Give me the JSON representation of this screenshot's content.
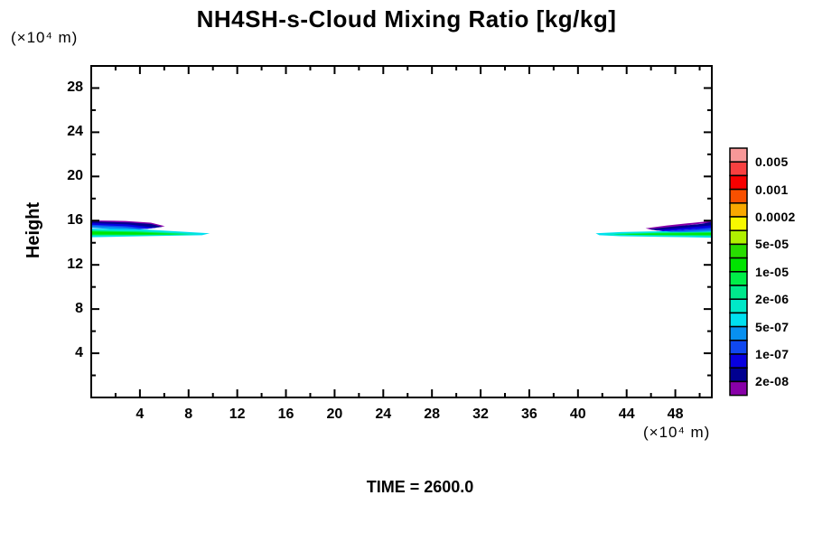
{
  "title": "NH4SH-s-Cloud Mixing Ratio [kg/kg]",
  "ylabel": "Height",
  "y_unit": "(×10⁴  m)",
  "x_unit": "(×10⁴  m)",
  "time_label": "TIME = 2600.0",
  "chart_data": {
    "type": "heatmap",
    "subtype": "filled-contour-cloud-cross-section",
    "title": "NH4SH-s-Cloud Mixing Ratio [kg/kg]",
    "xlabel_unit": "(×10⁴ m)",
    "ylabel": "Height",
    "ylabel_unit": "(×10⁴ m)",
    "time": 2600.0,
    "x_range": [
      0,
      51
    ],
    "y_range": [
      0,
      30
    ],
    "grid": false,
    "x_ticks_major": [
      4,
      8,
      12,
      16,
      20,
      24,
      28,
      32,
      36,
      40,
      44,
      48
    ],
    "x_ticks_minor": [
      2,
      6,
      10,
      14,
      18,
      22,
      26,
      30,
      34,
      38,
      42,
      46,
      50
    ],
    "y_ticks_major": [
      4,
      8,
      12,
      16,
      20,
      24,
      28
    ],
    "y_ticks_minor": [
      2,
      6,
      10,
      14,
      18,
      22,
      26,
      30
    ],
    "colorbar": {
      "position": "right",
      "colors": [
        "#F89898",
        "#F84040",
        "#F80000",
        "#F85000",
        "#F8A800",
        "#F8F800",
        "#B0F000",
        "#28DC00",
        "#00E400",
        "#00EE48",
        "#00E88C",
        "#00E8C8",
        "#00E0F0",
        "#0890F0",
        "#1048F0",
        "#0800E0",
        "#000090",
        "#8800A8"
      ],
      "labels": [
        "0.005",
        "0.001",
        "0.0002",
        "5e-05",
        "1e-05",
        "2e-06",
        "5e-07",
        "1e-07",
        "2e-08"
      ],
      "label_cell_boundaries": [
        1,
        3,
        5,
        7,
        9,
        11,
        13,
        15,
        17
      ]
    },
    "features": [
      {
        "name": "left-cloud-fringe-2e-08",
        "color": "#8800A8",
        "points": [
          [
            0,
            16.02
          ],
          [
            2.8,
            15.97
          ],
          [
            4.9,
            15.82
          ],
          [
            6.05,
            15.5
          ],
          [
            5.55,
            15.4
          ],
          [
            4.4,
            15.68
          ],
          [
            2.4,
            15.82
          ],
          [
            0,
            15.88
          ]
        ]
      },
      {
        "name": "left-cloud-1e-07",
        "color": "#000090",
        "points": [
          [
            0,
            15.92
          ],
          [
            3.1,
            15.84
          ],
          [
            4.9,
            15.7
          ],
          [
            5.85,
            15.44
          ],
          [
            4.9,
            15.3
          ],
          [
            3.3,
            15.52
          ],
          [
            0,
            15.7
          ]
        ]
      },
      {
        "name": "left-cloud-2e-07",
        "color": "#0800E0",
        "points": [
          [
            0,
            15.78
          ],
          [
            3.0,
            15.66
          ],
          [
            5.35,
            15.36
          ],
          [
            4.5,
            15.25
          ],
          [
            2.6,
            15.44
          ],
          [
            0,
            15.56
          ]
        ]
      },
      {
        "name": "left-cloud-5e-07",
        "color": "#1048F0",
        "points": [
          [
            0,
            15.64
          ],
          [
            2.9,
            15.5
          ],
          [
            4.75,
            15.28
          ],
          [
            3.8,
            15.2
          ],
          [
            2.1,
            15.34
          ],
          [
            0,
            15.46
          ]
        ]
      },
      {
        "name": "left-cloud-1e-06",
        "color": "#0890F0",
        "points": [
          [
            0,
            15.52
          ],
          [
            2.6,
            15.4
          ],
          [
            4.1,
            15.24
          ],
          [
            2.7,
            15.16
          ],
          [
            0,
            15.34
          ]
        ]
      },
      {
        "name": "left-deck-5e-07",
        "color": "#00E0F0",
        "points": [
          [
            0,
            15.28
          ],
          [
            4.5,
            15.2
          ],
          [
            9.75,
            14.86
          ],
          [
            9.1,
            14.68
          ],
          [
            4.8,
            14.6
          ],
          [
            0,
            14.5
          ]
        ]
      },
      {
        "name": "left-deck-2e-06",
        "color": "#00E8C8",
        "points": [
          [
            0,
            15.18
          ],
          [
            4.3,
            15.1
          ],
          [
            8.9,
            14.82
          ],
          [
            8.2,
            14.7
          ],
          [
            4.4,
            14.66
          ],
          [
            0,
            14.6
          ]
        ]
      },
      {
        "name": "left-deck-5e-06",
        "color": "#00EE48",
        "points": [
          [
            0,
            15.09
          ],
          [
            4.0,
            15.01
          ],
          [
            8.1,
            14.79
          ],
          [
            7.0,
            14.72
          ],
          [
            3.8,
            14.7
          ],
          [
            0,
            14.68
          ]
        ]
      },
      {
        "name": "left-deck-1e-05",
        "color": "#00E400",
        "points": [
          [
            0,
            15.01
          ],
          [
            3.6,
            14.94
          ],
          [
            6.9,
            14.77
          ],
          [
            3.4,
            14.75
          ],
          [
            0,
            14.76
          ]
        ]
      },
      {
        "name": "right-deck-5e-07",
        "color": "#00E0F0",
        "points": [
          [
            41.45,
            14.86
          ],
          [
            43.5,
            14.97
          ],
          [
            47,
            15.05
          ],
          [
            51,
            15.14
          ],
          [
            51,
            14.46
          ],
          [
            47,
            14.53
          ],
          [
            43.5,
            14.59
          ],
          [
            41.75,
            14.68
          ]
        ]
      },
      {
        "name": "right-deck-2e-06",
        "color": "#00E8C8",
        "points": [
          [
            42.2,
            14.82
          ],
          [
            45.5,
            14.93
          ],
          [
            51,
            15.04
          ],
          [
            51,
            14.56
          ],
          [
            45.8,
            14.62
          ],
          [
            42.5,
            14.7
          ]
        ]
      },
      {
        "name": "right-deck-5e-06",
        "color": "#00EE48",
        "points": [
          [
            42.9,
            14.79
          ],
          [
            46.5,
            14.89
          ],
          [
            51,
            14.96
          ],
          [
            51,
            14.64
          ],
          [
            46.5,
            14.68
          ],
          [
            43.3,
            14.73
          ]
        ]
      },
      {
        "name": "right-deck-1e-05",
        "color": "#00E400",
        "points": [
          [
            43.8,
            14.77
          ],
          [
            47.5,
            14.84
          ],
          [
            51,
            14.88
          ],
          [
            51,
            14.72
          ],
          [
            47.5,
            14.73
          ],
          [
            44.3,
            14.74
          ]
        ]
      },
      {
        "name": "right-cloud-fringe-2e-08",
        "color": "#8800A8",
        "points": [
          [
            45.55,
            15.3
          ],
          [
            47.3,
            15.56
          ],
          [
            49.4,
            15.8
          ],
          [
            51,
            15.98
          ],
          [
            51,
            15.84
          ],
          [
            49.3,
            15.62
          ],
          [
            47.6,
            15.38
          ],
          [
            46.1,
            15.16
          ]
        ]
      },
      {
        "name": "right-cloud-1e-07",
        "color": "#000090",
        "points": [
          [
            45.85,
            15.24
          ],
          [
            47.8,
            15.46
          ],
          [
            50.2,
            15.72
          ],
          [
            51,
            15.9
          ],
          [
            51,
            15.5
          ],
          [
            48.6,
            15.3
          ],
          [
            46.5,
            15.1
          ]
        ]
      },
      {
        "name": "right-cloud-2e-07",
        "color": "#0800E0",
        "points": [
          [
            46.4,
            15.14
          ],
          [
            48.8,
            15.36
          ],
          [
            51,
            15.58
          ],
          [
            51,
            15.3
          ],
          [
            48.9,
            15.18
          ],
          [
            47.0,
            15.04
          ]
        ]
      },
      {
        "name": "right-cloud-5e-07",
        "color": "#1048F0",
        "points": [
          [
            47.1,
            15.06
          ],
          [
            49.6,
            15.24
          ],
          [
            51,
            15.38
          ],
          [
            51,
            15.16
          ],
          [
            49.5,
            15.06
          ],
          [
            47.7,
            14.99
          ]
        ]
      },
      {
        "name": "right-cloud-1e-06",
        "color": "#0890F0",
        "points": [
          [
            47.9,
            15.0
          ],
          [
            50.2,
            15.14
          ],
          [
            51,
            15.2
          ],
          [
            51,
            15.04
          ],
          [
            49.9,
            14.98
          ],
          [
            48.4,
            14.95
          ]
        ]
      }
    ]
  }
}
